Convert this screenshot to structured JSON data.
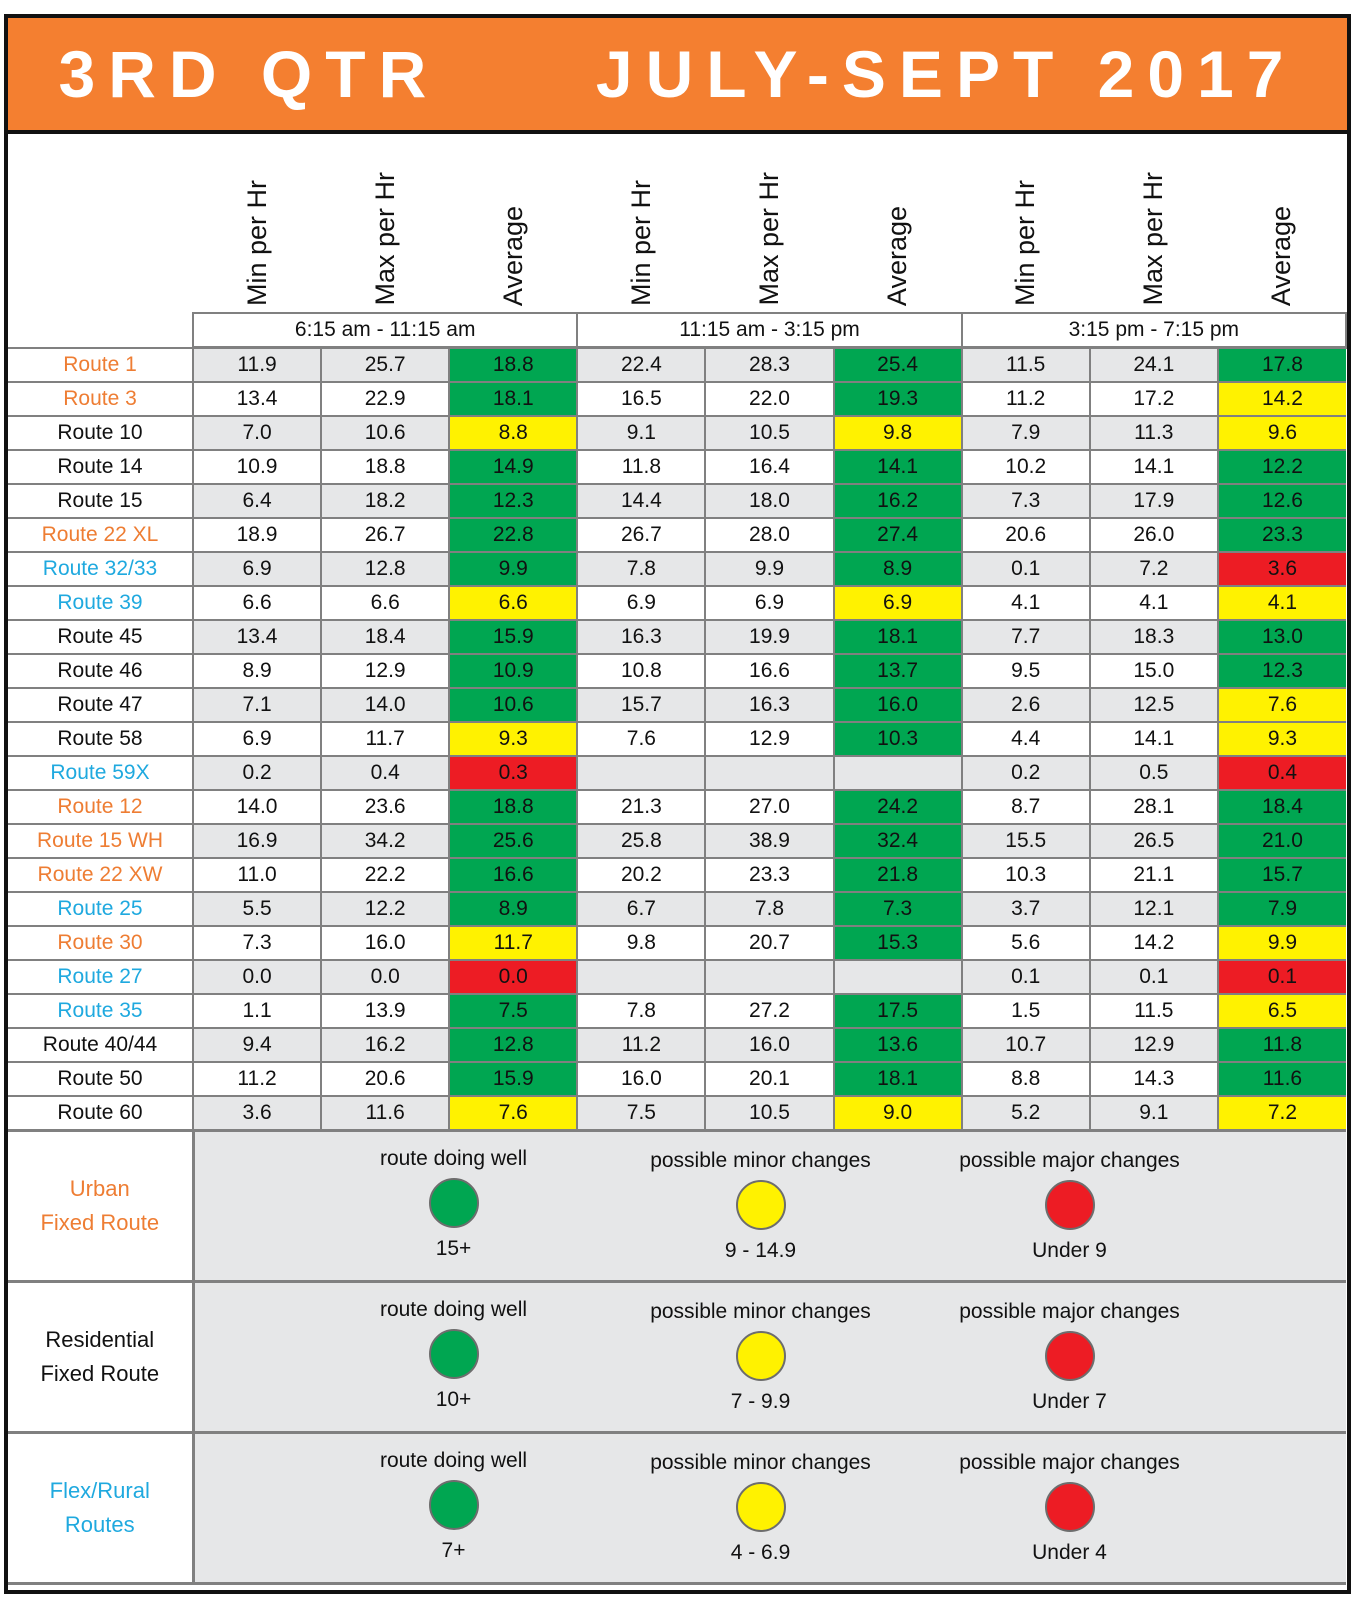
{
  "title": "3RD QTR     JULY-SEPT 2017",
  "colors": {
    "title_bg": "#F47F30",
    "green": "#00A651",
    "yellow": "#FFF200",
    "red": "#ED1C24",
    "orange_text": "#EE7D33",
    "blue_text": "#1FA9DF",
    "black_text": "#111111",
    "grid": "#808080",
    "shade": "#E6E7E8"
  },
  "column_headers": [
    "Min per Hr",
    "Max per Hr",
    "Average",
    "Min per Hr",
    "Max per Hr",
    "Average",
    "Min per Hr",
    "Max per Hr",
    "Average"
  ],
  "time_periods": [
    "6:15 am - 11:15 am",
    "11:15 am - 3:15 pm",
    "3:15 pm - 7:15 pm"
  ],
  "rows": [
    {
      "route": "Route 1",
      "type": "orange",
      "values": [
        "11.9",
        "25.7",
        "18.8",
        "22.4",
        "28.3",
        "25.4",
        "11.5",
        "24.1",
        "17.8"
      ],
      "status": [
        "green",
        "green",
        "green"
      ]
    },
    {
      "route": "Route 3",
      "type": "orange",
      "values": [
        "13.4",
        "22.9",
        "18.1",
        "16.5",
        "22.0",
        "19.3",
        "11.2",
        "17.2",
        "14.2"
      ],
      "status": [
        "green",
        "green",
        "yellow"
      ]
    },
    {
      "route": "Route 10",
      "type": "black",
      "values": [
        "7.0",
        "10.6",
        "8.8",
        "9.1",
        "10.5",
        "9.8",
        "7.9",
        "11.3",
        "9.6"
      ],
      "status": [
        "yellow",
        "yellow",
        "yellow"
      ]
    },
    {
      "route": "Route 14",
      "type": "black",
      "values": [
        "10.9",
        "18.8",
        "14.9",
        "11.8",
        "16.4",
        "14.1",
        "10.2",
        "14.1",
        "12.2"
      ],
      "status": [
        "green",
        "green",
        "green"
      ]
    },
    {
      "route": "Route 15",
      "type": "black",
      "values": [
        "6.4",
        "18.2",
        "12.3",
        "14.4",
        "18.0",
        "16.2",
        "7.3",
        "17.9",
        "12.6"
      ],
      "status": [
        "green",
        "green",
        "green"
      ]
    },
    {
      "route": "Route 22 XL",
      "type": "orange",
      "values": [
        "18.9",
        "26.7",
        "22.8",
        "26.7",
        "28.0",
        "27.4",
        "20.6",
        "26.0",
        "23.3"
      ],
      "status": [
        "green",
        "green",
        "green"
      ]
    },
    {
      "route": "Route 32/33",
      "type": "blue",
      "values": [
        "6.9",
        "12.8",
        "9.9",
        "7.8",
        "9.9",
        "8.9",
        "0.1",
        "7.2",
        "3.6"
      ],
      "status": [
        "green",
        "green",
        "red"
      ]
    },
    {
      "route": "Route 39",
      "type": "blue",
      "values": [
        "6.6",
        "6.6",
        "6.6",
        "6.9",
        "6.9",
        "6.9",
        "4.1",
        "4.1",
        "4.1"
      ],
      "status": [
        "yellow",
        "yellow",
        "yellow"
      ]
    },
    {
      "route": "Route 45",
      "type": "black",
      "values": [
        "13.4",
        "18.4",
        "15.9",
        "16.3",
        "19.9",
        "18.1",
        "7.7",
        "18.3",
        "13.0"
      ],
      "status": [
        "green",
        "green",
        "green"
      ]
    },
    {
      "route": "Route 46",
      "type": "black",
      "values": [
        "8.9",
        "12.9",
        "10.9",
        "10.8",
        "16.6",
        "13.7",
        "9.5",
        "15.0",
        "12.3"
      ],
      "status": [
        "green",
        "green",
        "green"
      ]
    },
    {
      "route": "Route 47",
      "type": "black",
      "values": [
        "7.1",
        "14.0",
        "10.6",
        "15.7",
        "16.3",
        "16.0",
        "2.6",
        "12.5",
        "7.6"
      ],
      "status": [
        "green",
        "green",
        "yellow"
      ]
    },
    {
      "route": "Route 58",
      "type": "black",
      "values": [
        "6.9",
        "11.7",
        "9.3",
        "7.6",
        "12.9",
        "10.3",
        "4.4",
        "14.1",
        "9.3"
      ],
      "status": [
        "yellow",
        "green",
        "yellow"
      ]
    },
    {
      "route": "Route 59X",
      "type": "blue",
      "values": [
        "0.2",
        "0.4",
        "0.3",
        "",
        "",
        "",
        "0.2",
        "0.5",
        "0.4"
      ],
      "status": [
        "red",
        "",
        "red"
      ]
    },
    {
      "route": "Route 12",
      "type": "orange",
      "values": [
        "14.0",
        "23.6",
        "18.8",
        "21.3",
        "27.0",
        "24.2",
        "8.7",
        "28.1",
        "18.4"
      ],
      "status": [
        "green",
        "green",
        "green"
      ]
    },
    {
      "route": "Route 15 WH",
      "type": "orange",
      "values": [
        "16.9",
        "34.2",
        "25.6",
        "25.8",
        "38.9",
        "32.4",
        "15.5",
        "26.5",
        "21.0"
      ],
      "status": [
        "green",
        "green",
        "green"
      ]
    },
    {
      "route": "Route 22 XW",
      "type": "orange",
      "values": [
        "11.0",
        "22.2",
        "16.6",
        "20.2",
        "23.3",
        "21.8",
        "10.3",
        "21.1",
        "15.7"
      ],
      "status": [
        "green",
        "green",
        "green"
      ]
    },
    {
      "route": "Route 25",
      "type": "blue",
      "values": [
        "5.5",
        "12.2",
        "8.9",
        "6.7",
        "7.8",
        "7.3",
        "3.7",
        "12.1",
        "7.9"
      ],
      "status": [
        "green",
        "green",
        "green"
      ]
    },
    {
      "route": "Route 30",
      "type": "orange",
      "values": [
        "7.3",
        "16.0",
        "11.7",
        "9.8",
        "20.7",
        "15.3",
        "5.6",
        "14.2",
        "9.9"
      ],
      "status": [
        "yellow",
        "green",
        "yellow"
      ]
    },
    {
      "route": "Route 27",
      "type": "blue",
      "values": [
        "0.0",
        "0.0",
        "0.0",
        "",
        "",
        "",
        "0.1",
        "0.1",
        "0.1"
      ],
      "status": [
        "red",
        "",
        "red"
      ]
    },
    {
      "route": "Route 35",
      "type": "blue",
      "values": [
        "1.1",
        "13.9",
        "7.5",
        "7.8",
        "27.2",
        "17.5",
        "1.5",
        "11.5",
        "6.5"
      ],
      "status": [
        "green",
        "green",
        "yellow"
      ]
    },
    {
      "route": "Route 40/44",
      "type": "black",
      "values": [
        "9.4",
        "16.2",
        "12.8",
        "11.2",
        "16.0",
        "13.6",
        "10.7",
        "12.9",
        "11.8"
      ],
      "status": [
        "green",
        "green",
        "green"
      ]
    },
    {
      "route": "Route 50",
      "type": "black",
      "values": [
        "11.2",
        "20.6",
        "15.9",
        "16.0",
        "20.1",
        "18.1",
        "8.8",
        "14.3",
        "11.6"
      ],
      "status": [
        "green",
        "green",
        "green"
      ]
    },
    {
      "route": "Route 60",
      "type": "black",
      "values": [
        "3.6",
        "11.6",
        "7.6",
        "7.5",
        "10.5",
        "9.0",
        "5.2",
        "9.1",
        "7.2"
      ],
      "status": [
        "yellow",
        "yellow",
        "yellow"
      ]
    }
  ],
  "legend": [
    {
      "label": [
        "Urban",
        "Fixed Route"
      ],
      "type": "orange",
      "items": [
        {
          "caption": "route doing well",
          "value": "15+",
          "status": "green"
        },
        {
          "caption": "possible minor changes",
          "value": "9 - 14.9",
          "status": "yellow"
        },
        {
          "caption": "possible major changes",
          "value": "Under 9",
          "status": "red"
        }
      ]
    },
    {
      "label": [
        "Residential",
        "Fixed Route"
      ],
      "type": "black",
      "items": [
        {
          "caption": "route doing well",
          "value": "10+",
          "status": "green"
        },
        {
          "caption": "possible minor changes",
          "value": "7 - 9.9",
          "status": "yellow"
        },
        {
          "caption": "possible major changes",
          "value": "Under 7",
          "status": "red"
        }
      ]
    },
    {
      "label": [
        "Flex/Rural",
        "Routes"
      ],
      "type": "blue",
      "items": [
        {
          "caption": "route doing well",
          "value": "7+",
          "status": "green"
        },
        {
          "caption": "possible minor changes",
          "value": "4 - 6.9",
          "status": "yellow"
        },
        {
          "caption": "possible major changes",
          "value": "Under 4",
          "status": "red"
        }
      ]
    }
  ]
}
